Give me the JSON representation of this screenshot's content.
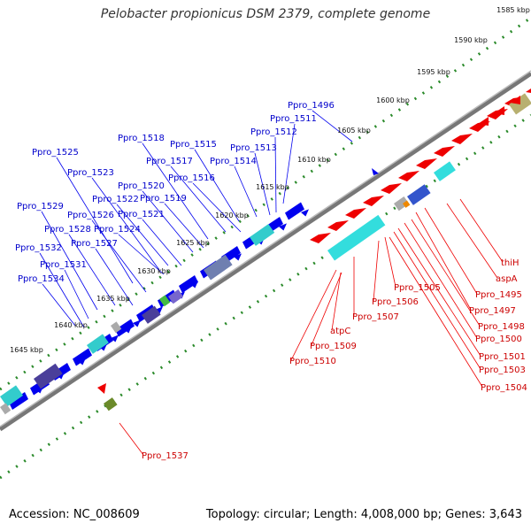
{
  "title": "Pelobacter propionicus DSM 2379, complete genome",
  "accession": "Accession: NC_008609",
  "topology": "Topology: circular; Length: 4,008,000 bp; Genes: 3,643",
  "ticks": [
    "1585 kbp",
    "1590 kbp",
    "1595 kbp",
    "1600 kbp",
    "1605 kbp",
    "1610 kbp",
    "1615 kbp",
    "1620 kbp",
    "1625 kbp",
    "1630 kbp",
    "1635 kbp",
    "1640 kbp",
    "1645 kbp"
  ],
  "blue_labels": [
    "Ppro_1496",
    "Ppro_1511",
    "Ppro_1512",
    "Ppro_1513",
    "Ppro_1514",
    "Ppro_1515",
    "Ppro_1516",
    "Ppro_1517",
    "Ppro_1518",
    "Ppro_1519",
    "Ppro_1520",
    "Ppro_1521",
    "Ppro_1522",
    "Ppro_1523",
    "Ppro_1524",
    "Ppro_1525",
    "Ppro_1526",
    "Ppro_1527",
    "Ppro_1528",
    "Ppro_1529",
    "Ppro_1531",
    "Ppro_1532",
    "Ppro_1534"
  ],
  "red_labels": [
    "thiH",
    "aspA",
    "Ppro_1495",
    "Ppro_1497",
    "Ppro_1498",
    "Ppro_1500",
    "Ppro_1501",
    "Ppro_1503",
    "Ppro_1504",
    "Ppro_1505",
    "Ppro_1506",
    "Ppro_1507",
    "atpC",
    "Ppro_1509",
    "Ppro_1510",
    "Ppro_1537"
  ],
  "colors": {
    "forward": "#0000ee",
    "reverse": "#ee0000",
    "ruler": "#2a8a2a",
    "backbone": "#888888",
    "cyan": "#33dddd",
    "purple": "#5a4aa8"
  }
}
